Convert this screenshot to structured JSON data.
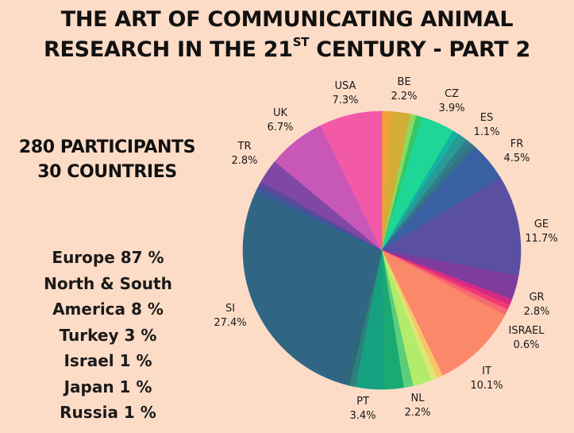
{
  "title": {
    "line1": "THE ART OF COMMUNICATING ANIMAL",
    "line2_prefix": "RESEARCH IN THE 21",
    "line2_sup": "ST",
    "line2_suffix": " CENTURY - PART 2"
  },
  "summary": {
    "participants": "280 PARTICIPANTS",
    "countries": "30 COUNTRIES"
  },
  "regions": [
    "Europe 87 %",
    "North & South",
    "America 8 %",
    "Turkey 3 %",
    "Israel 1 %",
    "Japan 1 %",
    "Russia 1 %"
  ],
  "chart_data": {
    "type": "pie",
    "start_angle_deg": 0,
    "direction": "clockwise",
    "slices": [
      {
        "label": "",
        "value": 1.1,
        "color": "#f2a23a"
      },
      {
        "label": "BE",
        "percent_label": "2.2%",
        "value": 2.2,
        "color": "#d4ac38"
      },
      {
        "label": "",
        "value": 0.7,
        "color": "#8fd85c"
      },
      {
        "label": "",
        "value": 0.7,
        "color": "#35c868"
      },
      {
        "label": "CZ",
        "percent_label": "3.9%",
        "value": 3.9,
        "color": "#1ed695"
      },
      {
        "label": "",
        "value": 0.7,
        "color": "#14b3a4"
      },
      {
        "label": "ES",
        "percent_label": "1.1%",
        "value": 1.1,
        "color": "#2a9a94"
      },
      {
        "label": "",
        "value": 0.7,
        "color": "#2f7f8a"
      },
      {
        "label": "",
        "value": 0.7,
        "color": "#34708a"
      },
      {
        "label": "FR",
        "percent_label": "4.5%",
        "value": 4.5,
        "color": "#3860a2"
      },
      {
        "label": "GE",
        "percent_label": "11.7%",
        "value": 11.7,
        "color": "#5a4fa3"
      },
      {
        "label": "GR",
        "percent_label": "2.8%",
        "value": 2.8,
        "color": "#7e3c9c"
      },
      {
        "label": "",
        "value": 0.7,
        "color": "#d42a87"
      },
      {
        "label": "ISRAEL",
        "percent_label": "0.6%",
        "value": 0.6,
        "color": "#f23a73"
      },
      {
        "label": "",
        "value": 0.7,
        "color": "#f66a72"
      },
      {
        "label": "IT",
        "percent_label": "10.1%",
        "value": 10.1,
        "color": "#fb8868"
      },
      {
        "label": "",
        "value": 0.7,
        "color": "#f8c468"
      },
      {
        "label": "",
        "value": 0.7,
        "color": "#dbe974"
      },
      {
        "label": "NL",
        "percent_label": "2.2%",
        "value": 2.2,
        "color": "#b3ec6a"
      },
      {
        "label": "",
        "value": 1.1,
        "color": "#5ace7a"
      },
      {
        "label": "",
        "value": 2.2,
        "color": "#1ba972"
      },
      {
        "label": "PT",
        "percent_label": "3.4%",
        "value": 3.4,
        "color": "#15a07f"
      },
      {
        "label": "",
        "value": 0.7,
        "color": "#2f7f7d"
      },
      {
        "label": "",
        "value": 0.7,
        "color": "#2d6a78"
      },
      {
        "label": "SI",
        "percent_label": "27.4%",
        "value": 27.4,
        "color": "#306683"
      },
      {
        "label": "",
        "value": 0.7,
        "color": "#3a5a98"
      },
      {
        "label": "",
        "value": 0.7,
        "color": "#5a4a9a"
      },
      {
        "label": "TR",
        "percent_label": "2.8%",
        "value": 2.8,
        "color": "#8048a4"
      },
      {
        "label": "UK",
        "percent_label": "6.7%",
        "value": 6.7,
        "color": "#c858b8"
      },
      {
        "label": "USA",
        "percent_label": "7.3%",
        "value": 7.3,
        "color": "#f25aa8"
      }
    ]
  }
}
